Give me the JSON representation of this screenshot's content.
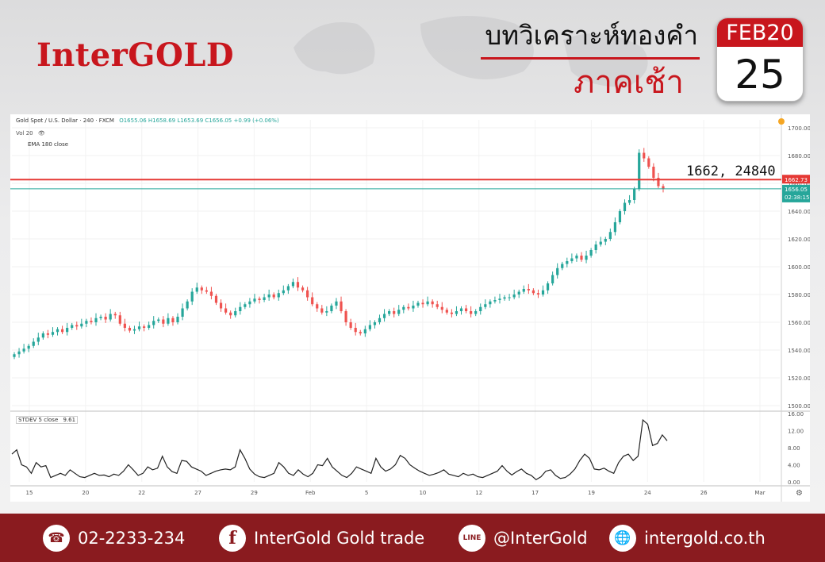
{
  "header": {
    "logo": "InterGOLD",
    "title_line1": "บทวิเคราะห์ทองคำ",
    "title_line2": "ภาคเช้า",
    "calendar_month": "FEB20",
    "calendar_day": "25"
  },
  "chart_data": {
    "type": "candlestick",
    "symbol_legend": "Gold Spot / U.S. Dollar · 240 · FXCM",
    "ohlc_legend": "O1655.06 H1658.69 L1653.69 C1656.05 +0.99 (+0.06%)",
    "indicator_legends": [
      "Vol 20",
      "EMA 180 close"
    ],
    "ylim": [
      1500,
      1700
    ],
    "y_ticks": [
      "1500.00",
      "1520.00",
      "1540.00",
      "1560.00",
      "1580.00",
      "1600.00",
      "1620.00",
      "1640.00",
      "1660.00",
      "1680.00",
      "1700.00"
    ],
    "x_ticks": [
      "15",
      "20",
      "22",
      "27",
      "29",
      "Feb",
      "5",
      "10",
      "12",
      "17",
      "19",
      "24",
      "26",
      "Mar"
    ],
    "horizontal_line": {
      "value": 1662.73,
      "label": "1662.73",
      "color": "#e53935"
    },
    "current_price": {
      "value": 1656.05,
      "label": "1656.05",
      "countdown": "02:38:15",
      "color": "#26a69a"
    },
    "annotation": "1662, 24840",
    "close_series": [
      1537,
      1539,
      1541,
      1543,
      1546,
      1549,
      1552,
      1551,
      1553,
      1555,
      1553,
      1556,
      1558,
      1557,
      1559,
      1561,
      1560,
      1563,
      1564,
      1562,
      1566,
      1565,
      1559,
      1556,
      1554,
      1555,
      1557,
      1556,
      1558,
      1561,
      1562,
      1559,
      1563,
      1560,
      1564,
      1570,
      1575,
      1582,
      1585,
      1583,
      1582,
      1579,
      1574,
      1570,
      1567,
      1565,
      1568,
      1571,
      1573,
      1575,
      1577,
      1576,
      1578,
      1580,
      1578,
      1581,
      1583,
      1586,
      1589,
      1585,
      1583,
      1578,
      1573,
      1570,
      1567,
      1568,
      1572,
      1575,
      1568,
      1560,
      1556,
      1553,
      1552,
      1555,
      1558,
      1560,
      1563,
      1566,
      1568,
      1566,
      1569,
      1571,
      1570,
      1572,
      1574,
      1573,
      1575,
      1573,
      1571,
      1569,
      1567,
      1566,
      1568,
      1570,
      1568,
      1566,
      1568,
      1571,
      1573,
      1575,
      1576,
      1577,
      1578,
      1578,
      1580,
      1582,
      1584,
      1583,
      1581,
      1580,
      1583,
      1588,
      1594,
      1599,
      1602,
      1604,
      1606,
      1608,
      1605,
      1608,
      1612,
      1616,
      1618,
      1620,
      1625,
      1632,
      1640,
      1646,
      1648,
      1656,
      1682,
      1678,
      1672,
      1664,
      1658,
      1656
    ],
    "stdev": {
      "legend": "STDEV 5 close",
      "value": "9.61",
      "ylim": [
        0,
        16
      ],
      "y_ticks": [
        "0.00",
        "4.00",
        "8.00",
        "12.00",
        "16.00"
      ],
      "series": [
        6.5,
        7.5,
        4.0,
        3.5,
        2.0,
        4.5,
        3.5,
        3.8,
        1.0,
        1.5,
        2.0,
        1.5,
        2.8,
        2.0,
        1.2,
        1.0,
        1.5,
        2.0,
        1.5,
        1.6,
        1.2,
        1.8,
        1.5,
        2.5,
        4.0,
        2.8,
        1.5,
        2.0,
        3.5,
        2.8,
        3.2,
        6.0,
        3.5,
        2.4,
        2.0,
        5.0,
        4.8,
        3.5,
        3.0,
        2.5,
        1.5,
        2.0,
        2.5,
        2.8,
        3.0,
        2.8,
        3.5,
        7.5,
        5.5,
        3.0,
        1.8,
        1.2,
        1.0,
        1.5,
        2.0,
        4.5,
        3.5,
        2.0,
        1.5,
        2.8,
        1.8,
        1.2,
        2.0,
        4.0,
        3.8,
        5.5,
        3.5,
        2.5,
        1.5,
        1.0,
        2.0,
        3.5,
        3.0,
        2.5,
        2.0,
        5.5,
        3.5,
        2.5,
        3.0,
        4.0,
        6.2,
        5.5,
        4.0,
        3.2,
        2.5,
        2.0,
        1.5,
        1.8,
        2.2,
        2.8,
        1.8,
        1.5,
        1.2,
        2.0,
        1.5,
        1.8,
        1.2,
        1.0,
        1.5,
        2.0,
        2.5,
        3.8,
        2.5,
        1.6,
        2.4,
        3.0,
        2.0,
        1.5,
        0.5,
        1.2,
        2.5,
        2.8,
        1.5,
        0.8,
        1.0,
        1.8,
        3.0,
        5.0,
        6.5,
        5.5,
        3.0,
        2.8,
        3.2,
        2.5,
        2.0,
        4.5,
        6.0,
        6.5,
        5.0,
        6.0,
        14.5,
        13.5,
        8.5,
        9.0,
        11.0,
        9.61
      ]
    }
  },
  "footer": {
    "phone": "02-2233-234",
    "facebook": "InterGold Gold trade",
    "line": "@InterGold",
    "website": "intergold.co.th",
    "icons": [
      "phone-icon",
      "facebook-icon",
      "line-icon",
      "globe-icon"
    ]
  }
}
